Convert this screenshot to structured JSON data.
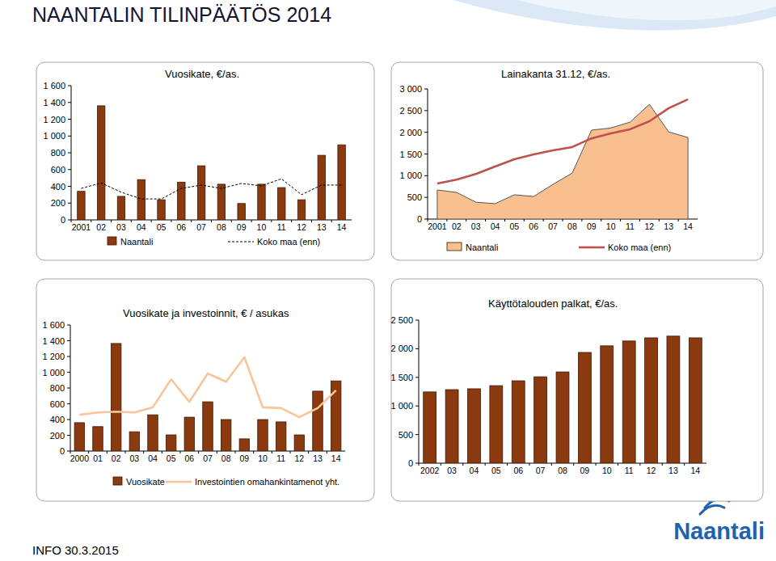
{
  "page": {
    "title": "NAANTALIN TILINPÄÄTÖS 2014",
    "footer": "INFO 30.3.2015",
    "logo": "Naantali"
  },
  "chart_data": [
    {
      "type": "bar",
      "title": "Vuosikate, €/as.",
      "categories": [
        "2001",
        "02",
        "03",
        "04",
        "05",
        "06",
        "07",
        "08",
        "09",
        "10",
        "11",
        "12",
        "13",
        "14"
      ],
      "series": [
        {
          "name": "Naantali",
          "type": "bar",
          "color": "#8B3A0F",
          "values": [
            340,
            1360,
            280,
            480,
            240,
            450,
            645,
            425,
            195,
            425,
            385,
            240,
            770,
            895
          ]
        },
        {
          "name": "Koko maa (enn)",
          "type": "line",
          "line_style": "dashed",
          "color": "#000000",
          "values": [
            375,
            440,
            330,
            250,
            250,
            375,
            415,
            375,
            435,
            405,
            490,
            300,
            415,
            415
          ]
        }
      ],
      "ylim": [
        0,
        1600
      ],
      "yticks": [
        0,
        200,
        400,
        600,
        800,
        {
          "value": 1000,
          "label": "1 000"
        },
        {
          "value": 1200,
          "label": "1 200"
        },
        {
          "value": 1400,
          "label": "1 400"
        },
        {
          "value": 1600,
          "label": "1 600"
        }
      ],
      "grid": false,
      "legend": "bottom"
    },
    {
      "type": "area",
      "title": "Lainakanta 31.12, €/as.",
      "categories": [
        "2001",
        "02",
        "03",
        "04",
        "05",
        "06",
        "07",
        "08",
        "09",
        "10",
        "11",
        "12",
        "13",
        "14"
      ],
      "series": [
        {
          "name": "Naantali",
          "type": "area",
          "color": "#F9C08F",
          "values": [
            670,
            615,
            390,
            355,
            560,
            520,
            800,
            1060,
            2050,
            2100,
            2235,
            2645,
            2010,
            1880
          ]
        },
        {
          "name": "Koko maa (enn)",
          "type": "line",
          "color": "#C0504D",
          "values": [
            820,
            910,
            1040,
            1210,
            1380,
            1490,
            1585,
            1660,
            1860,
            1975,
            2070,
            2255,
            2555,
            2760
          ]
        }
      ],
      "ylim": [
        0,
        3000
      ],
      "yticks": [
        0,
        500,
        {
          "value": 1000,
          "label": "1 000"
        },
        {
          "value": 1500,
          "label": "1 500"
        },
        {
          "value": 2000,
          "label": "2 000"
        },
        {
          "value": 2500,
          "label": "2 500"
        },
        {
          "value": 3000,
          "label": "3 000"
        }
      ],
      "grid": false,
      "legend": "bottom"
    },
    {
      "type": "bar",
      "title": "Vuosikate ja investoinnit, € / asukas",
      "categories": [
        "2000",
        "01",
        "02",
        "03",
        "04",
        "05",
        "06",
        "07",
        "08",
        "09",
        "10",
        "11",
        "12",
        "13",
        "14"
      ],
      "series": [
        {
          "name": "Vuosikate",
          "type": "bar",
          "color": "#8B3A0F",
          "values": [
            360,
            310,
            1365,
            245,
            460,
            205,
            430,
            625,
            400,
            155,
            400,
            370,
            205,
            760,
            890
          ]
        },
        {
          "name": "Investointien omahankintamenot yht.",
          "type": "line",
          "color": "#F8C59A",
          "values": [
            460,
            490,
            500,
            490,
            555,
            910,
            625,
            985,
            880,
            1190,
            555,
            545,
            430,
            545,
            770
          ]
        }
      ],
      "ylim": [
        0,
        1600
      ],
      "yticks": [
        0,
        200,
        400,
        600,
        800,
        {
          "value": 1000,
          "label": "1 000"
        },
        {
          "value": 1200,
          "label": "1 200"
        },
        {
          "value": 1400,
          "label": "1 400"
        },
        {
          "value": 1600,
          "label": "1 600"
        }
      ],
      "grid": false,
      "legend": "bottom"
    },
    {
      "type": "bar",
      "title": "Käyttötalouden palkat, €/as.",
      "categories": [
        "2002",
        "03",
        "04",
        "05",
        "06",
        "07",
        "08",
        "09",
        "10",
        "11",
        "12",
        "13",
        "14"
      ],
      "values": [
        1245,
        1285,
        1300,
        1355,
        1440,
        1510,
        1595,
        1935,
        2050,
        2135,
        2190,
        2220,
        2190
      ],
      "color": "#8B3A0F",
      "ylim": [
        0,
        2500
      ],
      "yticks": [
        0,
        500,
        {
          "value": 1000,
          "label": "1 000"
        },
        {
          "value": 1500,
          "label": "1 500"
        },
        {
          "value": 2000,
          "label": "2 000"
        },
        {
          "value": 2500,
          "label": "2 500"
        }
      ],
      "grid": false
    }
  ]
}
